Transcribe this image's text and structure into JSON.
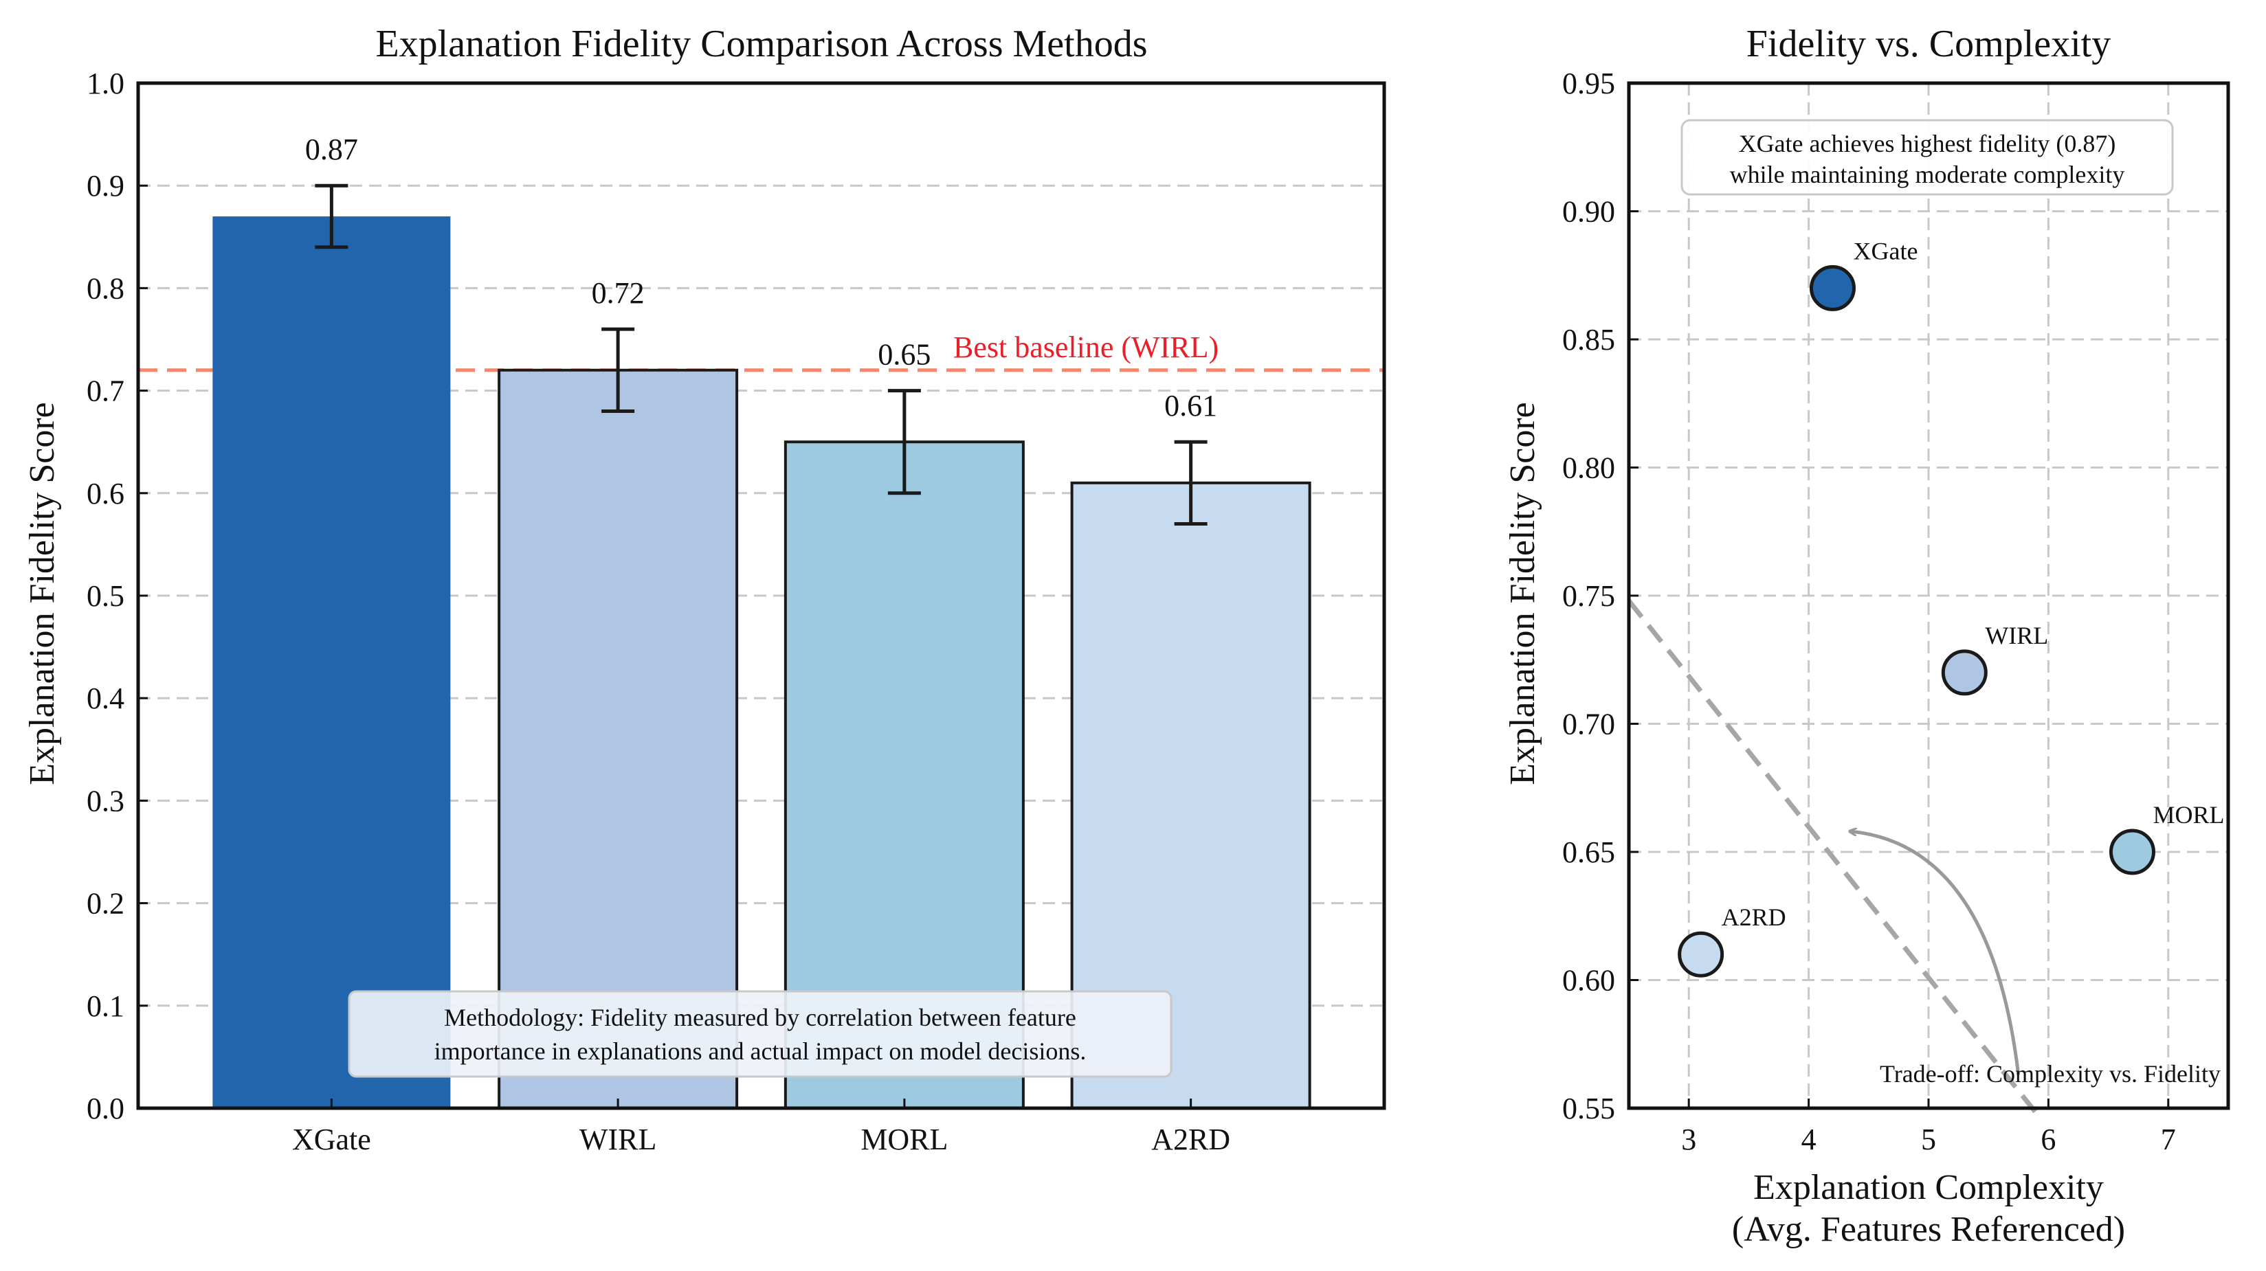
{
  "chart_data": [
    {
      "type": "bar",
      "title": "Explanation Fidelity Comparison Across Methods",
      "xlabel": "",
      "ylabel": "Explanation Fidelity Score",
      "ylim": [
        0.0,
        1.0
      ],
      "yticks": [
        "0.0",
        "0.1",
        "0.2",
        "0.3",
        "0.4",
        "0.5",
        "0.6",
        "0.7",
        "0.8",
        "0.9",
        "1.0"
      ],
      "grid": true,
      "categories": [
        "XGate",
        "WIRL",
        "MORL",
        "A2RD"
      ],
      "values": [
        0.87,
        0.72,
        0.65,
        0.61
      ],
      "errors": [
        0.03,
        0.04,
        0.05,
        0.04
      ],
      "value_labels": [
        "0.87",
        "0.72",
        "0.65",
        "0.61"
      ],
      "colors": [
        "#2166ac",
        "#aec6e4",
        "#9ecae1",
        "#c6dbef"
      ],
      "baseline": {
        "value": 0.72,
        "label": "Best baseline (WIRL)",
        "color": "#f4866d"
      },
      "annotation": "Methodology: Fidelity measured by correlation between feature importance in explanations and actual impact on model decisions."
    },
    {
      "type": "scatter",
      "title": "Fidelity vs. Complexity",
      "xlabel": "Explanation Complexity",
      "xlabel2": "(Avg. Features Referenced)",
      "ylabel": "Explanation Fidelity Score",
      "xlim": [
        2.5,
        7.5
      ],
      "ylim": [
        0.55,
        0.95
      ],
      "xticks": [
        "3",
        "4",
        "5",
        "6",
        "7"
      ],
      "yticks": [
        "0.55",
        "0.60",
        "0.65",
        "0.70",
        "0.75",
        "0.80",
        "0.85",
        "0.90",
        "0.95"
      ],
      "grid": true,
      "points": [
        {
          "label": "XGate",
          "x": 4.2,
          "y": 0.87,
          "color": "#2166ac"
        },
        {
          "label": "WIRL",
          "x": 5.3,
          "y": 0.72,
          "color": "#aec6e4"
        },
        {
          "label": "MORL",
          "x": 6.7,
          "y": 0.65,
          "color": "#9ecae1"
        },
        {
          "label": "A2RD",
          "x": 3.1,
          "y": 0.61,
          "color": "#c6dbef"
        }
      ],
      "tradeoff_line": {
        "x": [
          2.5,
          5.9
        ],
        "y": [
          0.748,
          0.548
        ],
        "color": "#a6a6a6"
      },
      "arrow": {
        "from": [
          5.75,
          0.563
        ],
        "to": [
          4.35,
          0.658
        ],
        "color": "#999999"
      },
      "highlight": "XGate achieves highest fidelity (0.87)",
      "highlight2": "while maintaining moderate complexity",
      "tradeoff_label": "Trade-off: Complexity vs. Fidelity"
    }
  ]
}
